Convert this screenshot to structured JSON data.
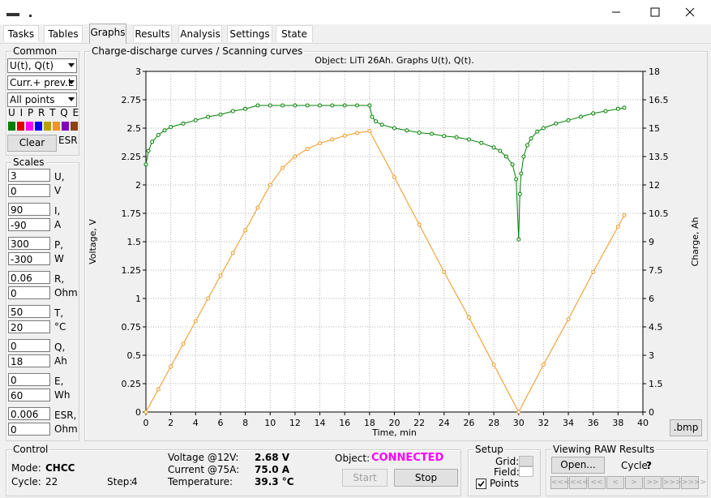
{
  "tabs": [
    "Tasks",
    "Tables",
    "Graphs",
    "Results",
    "Analysis",
    "Settings",
    "State"
  ],
  "selected_tab": 2,
  "common": {
    "title": "Common",
    "graph_select": "U(t), Q(t)",
    "curves_select": "Curr.+ prev.L",
    "points_select": "All points",
    "letters": "U I P R T Q E",
    "clear": "Clear",
    "esr": "ESR"
  },
  "scales": {
    "title": "Scales",
    "rows": [
      {
        "max": "3",
        "min": "0",
        "name": "U,",
        "unit": "V"
      },
      {
        "max": "90",
        "min": "-90",
        "name": "I,",
        "unit": "A"
      },
      {
        "max": "300",
        "min": "-300",
        "name": "P,",
        "unit": "W"
      },
      {
        "max": "0.06",
        "min": "0",
        "name": "R,",
        "unit": "Ohm"
      },
      {
        "max": "50",
        "min": "20",
        "name": "T,",
        "unit": "°C"
      },
      {
        "max": "0",
        "min": "18",
        "name": "Q,",
        "unit": "Ah"
      },
      {
        "max": "0",
        "min": "60",
        "name": "E,",
        "unit": "Wh"
      },
      {
        "max": "0.006",
        "min": "0",
        "name": "ESR,",
        "unit": "Ohm"
      }
    ]
  },
  "graph_group": {
    "title": "Charge-discharge curves / Scanning curves",
    "bmp": ".bmp"
  },
  "chart_data": {
    "type": "line",
    "title": "Object: LiTi 26Ah. Graphs U(t), Q(t).",
    "x_label": "Time, min",
    "y_label": "Voltage, V",
    "y2_label": "Charge, Ah",
    "xlim": [
      0,
      40
    ],
    "xticks": [
      0,
      2,
      4,
      6,
      8,
      10,
      12,
      14,
      16,
      18,
      20,
      22,
      24,
      26,
      28,
      30,
      32,
      34,
      36,
      38,
      40
    ],
    "ylim": [
      0,
      3
    ],
    "yticks": [
      0,
      0.25,
      0.5,
      0.75,
      1,
      1.25,
      1.5,
      1.75,
      2,
      2.25,
      2.5,
      2.75,
      3
    ],
    "y2lim": [
      0,
      18
    ],
    "y2ticks": [
      0,
      1.5,
      3,
      4.5,
      6,
      7.5,
      9,
      10.5,
      12,
      13.5,
      15,
      16.5,
      18
    ],
    "grid": true,
    "series": [
      {
        "color": "#008000",
        "axis": "y",
        "x": [
          0,
          0.2,
          0.5,
          1,
          1.5,
          2,
          3,
          4,
          5,
          6,
          7,
          8,
          9,
          10,
          11,
          12,
          13,
          14,
          15,
          16,
          17,
          18,
          18.2,
          18.5,
          19,
          20,
          21,
          22,
          23,
          24,
          25,
          26,
          27,
          28,
          28.5,
          29,
          29.5,
          29.8,
          30,
          30.1,
          30.2,
          30.4,
          30.7,
          31,
          31.5,
          32,
          33,
          34,
          35,
          36,
          37,
          38,
          38.5
        ],
        "values": [
          2.18,
          2.3,
          2.38,
          2.44,
          2.48,
          2.51,
          2.54,
          2.57,
          2.6,
          2.62,
          2.65,
          2.67,
          2.7,
          2.7,
          2.7,
          2.7,
          2.7,
          2.7,
          2.7,
          2.7,
          2.7,
          2.7,
          2.6,
          2.56,
          2.53,
          2.5,
          2.48,
          2.46,
          2.45,
          2.43,
          2.42,
          2.4,
          2.37,
          2.33,
          2.3,
          2.25,
          2.18,
          2.05,
          1.52,
          1.92,
          2.1,
          2.25,
          2.35,
          2.41,
          2.47,
          2.5,
          2.54,
          2.57,
          2.6,
          2.63,
          2.65,
          2.67,
          2.68
        ]
      },
      {
        "color": "#f0961e",
        "axis": "y2",
        "x": [
          0,
          1,
          2,
          3,
          4,
          5,
          6,
          7,
          8,
          9,
          10,
          11,
          12,
          13,
          14,
          15,
          16,
          17,
          18,
          20,
          22,
          24,
          26,
          28,
          30,
          32,
          34,
          36,
          38,
          38.5
        ],
        "values": [
          0,
          1.2,
          2.4,
          3.6,
          4.8,
          6,
          7.2,
          8.4,
          9.6,
          10.8,
          12,
          12.9,
          13.5,
          13.9,
          14.2,
          14.4,
          14.6,
          14.75,
          14.85,
          12.4,
          9.9,
          7.4,
          5,
          2.5,
          0,
          2.5,
          4.9,
          7.4,
          9.8,
          10.4
        ]
      }
    ]
  },
  "control": {
    "title": "Control",
    "mode_label": "Mode:",
    "mode": "CHCC",
    "cycle_label": "Cycle:",
    "cycle": "22",
    "step_label": "Step:",
    "step": "4",
    "voltage_label": "Voltage @12V:",
    "voltage": "2.68 V",
    "current_label": "Current @75A:",
    "current": "75.0 A",
    "temperature_label": "Temperature:",
    "temperature": "39.3 °C",
    "object_label": "Object:",
    "object_state": "CONNECTED",
    "start": "Start",
    "stop": "Stop"
  },
  "setup": {
    "title": "Setup",
    "grid": "Grid:",
    "field": "Field:",
    "points": "Points",
    "points_checked": true
  },
  "raw": {
    "title": "Viewing RAW Results",
    "open": "Open...",
    "cycle_label": "Cycle:",
    "cycle": "?",
    "nav": [
      "<<<<",
      "<<<",
      "<<",
      "<",
      ">",
      ">>",
      ">>>",
      ">>>>"
    ]
  }
}
